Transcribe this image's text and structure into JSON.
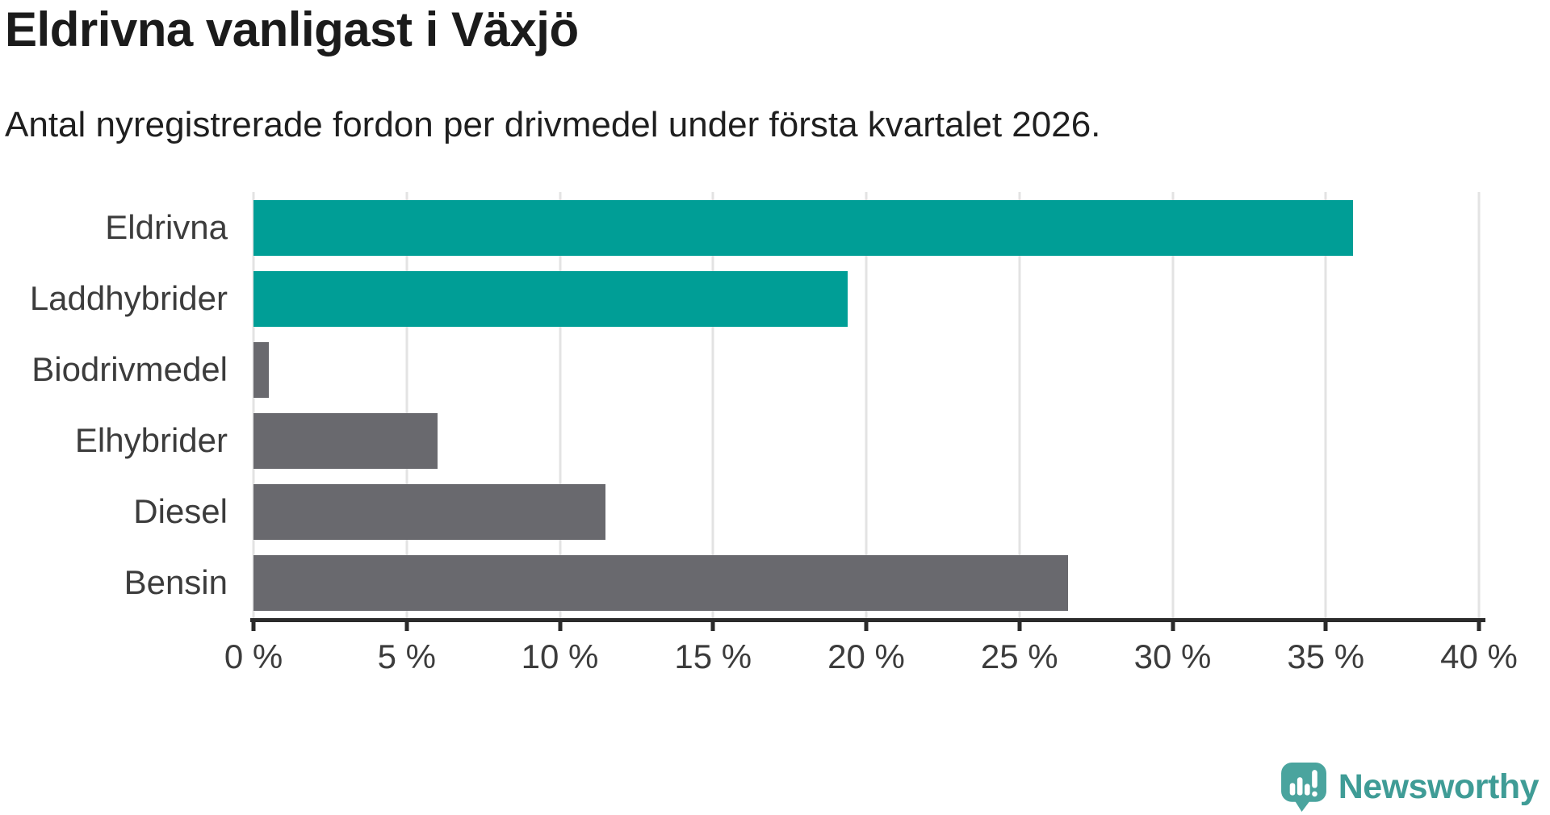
{
  "title": "Eldrivna vanligast i Växjö",
  "subtitle": "Antal nyregistrerade fordon per drivmedel under första kvartalet 2026.",
  "chart_data": {
    "type": "bar",
    "orientation": "horizontal",
    "title": "Eldrivna vanligast i Växjö",
    "subtitle": "Antal nyregistrerade fordon per drivmedel under första kvartalet 2026.",
    "categories": [
      "Eldrivna",
      "Laddhybrider",
      "Biodrivmedel",
      "Elhybrider",
      "Diesel",
      "Bensin"
    ],
    "values": [
      35.9,
      19.4,
      0.5,
      6.0,
      11.5,
      26.6
    ],
    "unit": "%",
    "bar_colors": [
      "#009e96",
      "#009e96",
      "#69696e",
      "#69696e",
      "#69696e",
      "#69696e"
    ],
    "xlim": [
      0,
      40
    ],
    "x_ticks": [
      0,
      5,
      10,
      15,
      20,
      25,
      30,
      35,
      40
    ],
    "x_tick_labels": [
      "0 %",
      "5 %",
      "10 %",
      "15 %",
      "20 %",
      "25 %",
      "30 %",
      "35 %",
      "40 %"
    ],
    "grid": true,
    "legend": "none",
    "highlight_color": "#009e96",
    "default_color": "#69696e"
  },
  "colors": {
    "accent_teal": "#009e96",
    "bar_gray": "#69696e",
    "grid_gray": "#e3e3e3",
    "axis_dark": "#2b2b2b",
    "logo_teal": "#4aa49e",
    "logo_text_teal": "#3f9c96"
  },
  "footer": {
    "brand": "Newsworthy"
  }
}
